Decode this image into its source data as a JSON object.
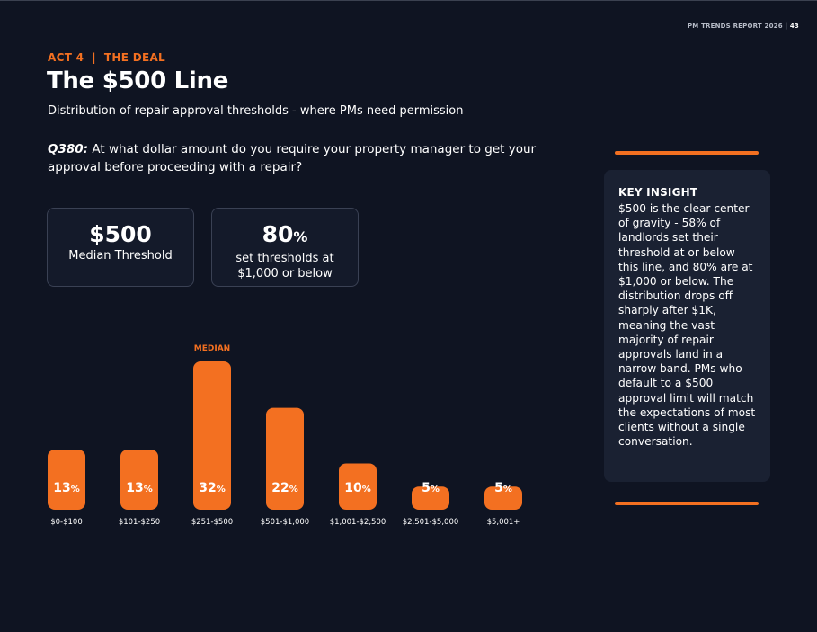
{
  "header": {
    "report_label": "PM TRENDS REPORT 2026",
    "page_number": "43",
    "separator": "|"
  },
  "section": {
    "kicker": "ACT 4  |  THE DEAL",
    "title": "The $500 Line",
    "subtitle": "Distribution of repair approval thresholds - where PMs need permission"
  },
  "question": {
    "number": "Q380:",
    "text": "At what dollar amount do you require your property manager to get your approval before proceeding with a repair?"
  },
  "stats": [
    {
      "value": "$500",
      "suffix": "",
      "label": "Median Threshold"
    },
    {
      "value": "80",
      "suffix": "%",
      "label": "set thresholds at $1,000 or below"
    }
  ],
  "insight": {
    "heading": "KEY INSIGHT",
    "body": "$500 is the clear center of gravity - 58% of landlords set their threshold at or below this line, and 80% are at $1,000 or below. The distribution drops off sharply after $1K, meaning the vast majority of repair approvals land in a narrow band. PMs who default to a $500 approval limit will match the expectations of most clients without a single conversation."
  },
  "colors": {
    "background": "#0f1422",
    "accent": "#f37021",
    "card": "#1a2132"
  },
  "chart_data": {
    "type": "bar",
    "categories": [
      "$0-$100",
      "$101-$250",
      "$251-$500",
      "$501-$1,000",
      "$1,001-$2,500",
      "$2,501-$5,000",
      "$5,001+"
    ],
    "values": [
      13,
      13,
      32,
      22,
      10,
      5,
      5
    ],
    "value_suffix": "%",
    "highlight_index": 2,
    "highlight_label": "MEDIAN",
    "ylim": [
      0,
      32
    ],
    "grid": false,
    "legend": "none"
  }
}
